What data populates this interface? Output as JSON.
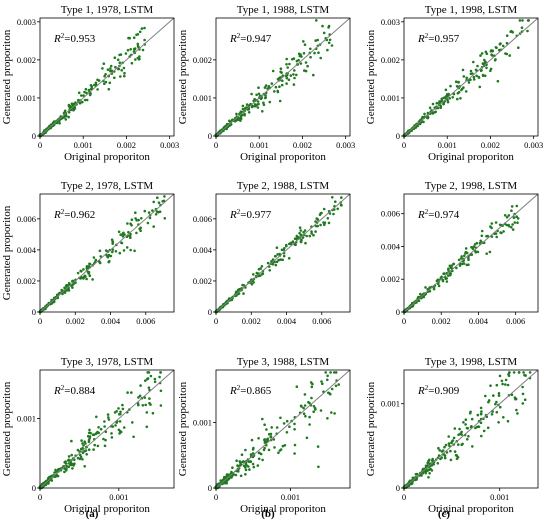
{
  "figure": {
    "column_labels": [
      "(a)",
      "(b)",
      "(c)"
    ],
    "colors": {
      "points": "#1f7a1f",
      "diagonal": "#7f7f7f",
      "axis": "#000000"
    }
  },
  "chart_data": [
    {
      "type": "scatter",
      "title": "Type 1, 1978, LSTM",
      "annotation": "R2=0.953",
      "r2": "0.953",
      "xlabel": "Original proporiton",
      "ylabel": "Generated proporiton",
      "xlim": [
        0,
        0.0031
      ],
      "ylim": [
        0,
        0.0031
      ],
      "xticks": [
        0,
        0.001,
        0.002,
        0.003
      ],
      "xtick_labels": [
        "0",
        "0.001",
        "0.002",
        "0.003"
      ],
      "yticks": [
        0,
        0.001,
        0.002,
        0.003
      ],
      "ytick_labels": [
        "0",
        "0.001",
        "0.002",
        "0.003"
      ],
      "x_max_pts": 0.0025,
      "spread": 0.11
    },
    {
      "type": "scatter",
      "title": "Type 1, 1988, LSTM",
      "annotation": "R2=0.947",
      "r2": "0.947",
      "xlabel": "Original proporiton",
      "ylabel": "Generated proporiton",
      "xlim": [
        0,
        0.0031
      ],
      "ylim": [
        0,
        0.0031
      ],
      "xticks": [
        0,
        0.001,
        0.002,
        0.003
      ],
      "xtick_labels": [
        "0",
        "0.001",
        "0.002",
        "0.003"
      ],
      "yticks": [
        0,
        0.001,
        0.002
      ],
      "ytick_labels": [
        "0",
        "0.001",
        "0.002"
      ],
      "x_max_pts": 0.0027,
      "spread": 0.12
    },
    {
      "type": "scatter",
      "title": "Type 1, 1998, LSTM",
      "annotation": "R2=0.957",
      "r2": "0.957",
      "xlabel": "Original proporiton",
      "ylabel": "Generated proporiton",
      "xlim": [
        0,
        0.0031
      ],
      "ylim": [
        0,
        0.0031
      ],
      "xticks": [
        0,
        0.001,
        0.002,
        0.003
      ],
      "xtick_labels": [
        "0",
        "0.001",
        "0.002",
        "0.003"
      ],
      "yticks": [
        0,
        0.001,
        0.002,
        0.003
      ],
      "ytick_labels": [
        "0",
        "0.001",
        "0.002",
        "0.003"
      ],
      "x_max_pts": 0.0029,
      "spread": 0.1
    },
    {
      "type": "scatter",
      "title": "Type 2, 1978, LSTM",
      "annotation": "R2=0.962",
      "r2": "0.962",
      "xlabel": "",
      "ylabel": "Generated proporiton",
      "xlim": [
        0,
        0.0076
      ],
      "ylim": [
        0,
        0.0076
      ],
      "xticks": [
        0,
        0.002,
        0.004,
        0.006
      ],
      "xtick_labels": [
        "0",
        "0.002",
        "0.004",
        "0.006"
      ],
      "yticks": [
        0,
        0.002,
        0.004,
        0.006
      ],
      "ytick_labels": [
        "0",
        "0.002",
        "0.004",
        "0.006"
      ],
      "x_max_pts": 0.0072,
      "spread": 0.09
    },
    {
      "type": "scatter",
      "title": "Type 2, 1988, LSTM",
      "annotation": "R2=0.977",
      "r2": "0.977",
      "xlabel": "",
      "ylabel": "",
      "xlim": [
        0,
        0.0076
      ],
      "ylim": [
        0,
        0.0076
      ],
      "xticks": [
        0,
        0.002,
        0.004,
        0.006
      ],
      "xtick_labels": [
        "0",
        "0.002",
        "0.004",
        "0.006"
      ],
      "yticks": [
        0,
        0.002,
        0.004,
        0.006
      ],
      "ytick_labels": [
        "0",
        "0.002",
        "0.004",
        "0.006"
      ],
      "x_max_pts": 0.0072,
      "spread": 0.07
    },
    {
      "type": "scatter",
      "title": "Type 2, 1998, LSTM",
      "annotation": "R2=0.974",
      "r2": "0.974",
      "xlabel": "",
      "ylabel": "",
      "xlim": [
        0,
        0.0072
      ],
      "ylim": [
        0,
        0.0072
      ],
      "xticks": [
        0,
        0.002,
        0.004,
        0.006
      ],
      "xtick_labels": [
        "0",
        "0.002",
        "0.004",
        "0.006"
      ],
      "yticks": [
        0,
        0.002,
        0.004,
        0.006
      ],
      "ytick_labels": [
        "0",
        "0.002",
        "0.004",
        "0.006"
      ],
      "x_max_pts": 0.0062,
      "spread": 0.08
    },
    {
      "type": "scatter",
      "title": "Type 3, 1978, LSTM",
      "annotation": "R2=0.884",
      "r2": "0.884",
      "xlabel": "Original proporiton",
      "ylabel": "Generated proporiton",
      "xlim": [
        0,
        0.0017
      ],
      "ylim": [
        0,
        0.0017
      ],
      "xticks": [
        0,
        0.001
      ],
      "xtick_labels": [
        "0",
        "0.001"
      ],
      "yticks": [
        0,
        0.001
      ],
      "ytick_labels": [
        "0",
        "0.001"
      ],
      "x_max_pts": 0.00155,
      "spread": 0.18
    },
    {
      "type": "scatter",
      "title": "Type 3, 1988, LSTM",
      "annotation": "R2=0.865",
      "r2": "0.865",
      "xlabel": "Original proporiton",
      "ylabel": "Generated proporiton",
      "xlim": [
        0,
        0.0018
      ],
      "ylim": [
        0,
        0.0018
      ],
      "xticks": [
        0,
        0.001
      ],
      "xtick_labels": [
        "0",
        "0.001"
      ],
      "yticks": [
        0,
        0.001
      ],
      "ytick_labels": [
        "0",
        "0.001"
      ],
      "x_max_pts": 0.00165,
      "spread": 0.2
    },
    {
      "type": "scatter",
      "title": "Type 3, 1998, LSTM",
      "annotation": "R2=0.909",
      "r2": "0.909",
      "xlabel": "Original proporiton",
      "ylabel": "Generated proporiton",
      "xlim": [
        0,
        0.0014
      ],
      "ylim": [
        0,
        0.0014
      ],
      "xticks": [
        0,
        0.001
      ],
      "xtick_labels": [
        "0",
        "0.001"
      ],
      "yticks": [
        0,
        0.001
      ],
      "ytick_labels": [
        "0",
        "0.001"
      ],
      "x_max_pts": 0.00132,
      "spread": 0.16
    }
  ]
}
